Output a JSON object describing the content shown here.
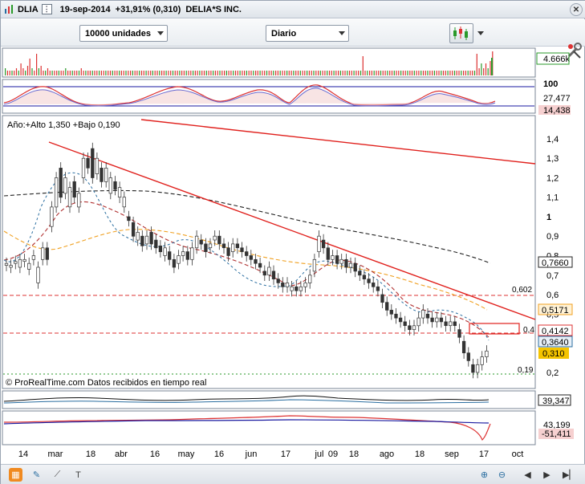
{
  "window": {
    "symbol": "DLIA",
    "date": "19-sep-2014",
    "change": "+31,91% (0,310)",
    "company": "DELIA*S INC.",
    "close_icon": "close-icon"
  },
  "toolbar": {
    "units_value": "10000 unidades",
    "period_value": "Diario",
    "chart_type_icon": "candlestick-chart-icon",
    "settings_icon": "wrench-icon"
  },
  "volume_panel": {
    "value_label": "4.666k",
    "bars": [
      3,
      2,
      2,
      2,
      2,
      3,
      2,
      5,
      3,
      2,
      4,
      7,
      3,
      2,
      9,
      3,
      4,
      2,
      2,
      3,
      2,
      2,
      2,
      2,
      2,
      2,
      2,
      3,
      2,
      2,
      2,
      2,
      2,
      2,
      3,
      2,
      2,
      2,
      2,
      2,
      2,
      2,
      2,
      2,
      2,
      2,
      2,
      2,
      2,
      2,
      2,
      2,
      2,
      2,
      2,
      2,
      2,
      2,
      2,
      2,
      2,
      2,
      2,
      2,
      2,
      2,
      2,
      2,
      2,
      2,
      2,
      2,
      2,
      2,
      2,
      2,
      2,
      2,
      2,
      2,
      2,
      2,
      2,
      2,
      2,
      2,
      2,
      2,
      2,
      2,
      2,
      2,
      2,
      2,
      2,
      2,
      2,
      2,
      2,
      2,
      2,
      2,
      2,
      2,
      2,
      2,
      2,
      2,
      2,
      2,
      2,
      2,
      2,
      2,
      2,
      2,
      2,
      2,
      2,
      2,
      2,
      2,
      2,
      2,
      2,
      2,
      2,
      2,
      2,
      2,
      2,
      2,
      2,
      2,
      2,
      2,
      2,
      2,
      2,
      2,
      2,
      2,
      2,
      2,
      2,
      2,
      2,
      2,
      2,
      2,
      2,
      2,
      2,
      2,
      2,
      2,
      2,
      2,
      2,
      2,
      8,
      2,
      2,
      2,
      2,
      2,
      2,
      2,
      2,
      2,
      2,
      2,
      2,
      2,
      2,
      2,
      2,
      2,
      2,
      2,
      2,
      2,
      2,
      2,
      2,
      2,
      2,
      2,
      2,
      2,
      2,
      2,
      2,
      2,
      2,
      2,
      2,
      2,
      2,
      2,
      2,
      2,
      2,
      2,
      2,
      2,
      2,
      2,
      2,
      2,
      2,
      9,
      3,
      5,
      3,
      5,
      3,
      6,
      10
    ]
  },
  "stoch_panel": {
    "top_label": "100",
    "value1": "27,477",
    "value2": "14,438"
  },
  "price_panel": {
    "range_label": "Año:+Alto 1,350 +Bajo 0,190",
    "source_label": "© ProRealTime.com  Datos recibidos en tiempo real",
    "y_ticks": [
      "1,4",
      "1,3",
      "1,2",
      "1,1",
      "1",
      "0,9",
      "0,8",
      "0,7",
      "0,6",
      "0,5",
      "0,4",
      "0,3",
      "0,2"
    ],
    "badges": {
      "ma_long": "0,7660",
      "ma_mid": "0,5171",
      "level_04": "0,4142",
      "ma_short": "0,3640",
      "last": "0,310"
    },
    "level_labels": {
      "resistance": "0,602",
      "resistance2": "0,4",
      "support": "0,19"
    },
    "colors": {
      "trendline": "#e0201c",
      "ma_long": "#222222",
      "ma_mid": "#f0a020",
      "ma_short": "#c03030",
      "ma_fast": "#2a6ea0",
      "last_badge": "#f5c400",
      "support": "#2a9a2a"
    }
  },
  "macd_panel": {
    "value": "39,347"
  },
  "momentum_panel": {
    "value1": "43,199",
    "value2": "-51,411"
  },
  "x_axis": {
    "labels": [
      "14",
      "mar",
      "18",
      "abr",
      "16",
      "may",
      "16",
      "jun",
      "17",
      "jul",
      "09",
      "18",
      "ago",
      "18",
      "sep",
      "17",
      "oct"
    ]
  },
  "statusbar": {
    "icons": [
      "layout-icon",
      "pencil-icon",
      "line-tool-icon",
      "text-tool-icon",
      "zoom-in-icon",
      "zoom-out-icon",
      "scroll-left-icon",
      "scroll-right-icon",
      "scroll-end-icon"
    ]
  }
}
